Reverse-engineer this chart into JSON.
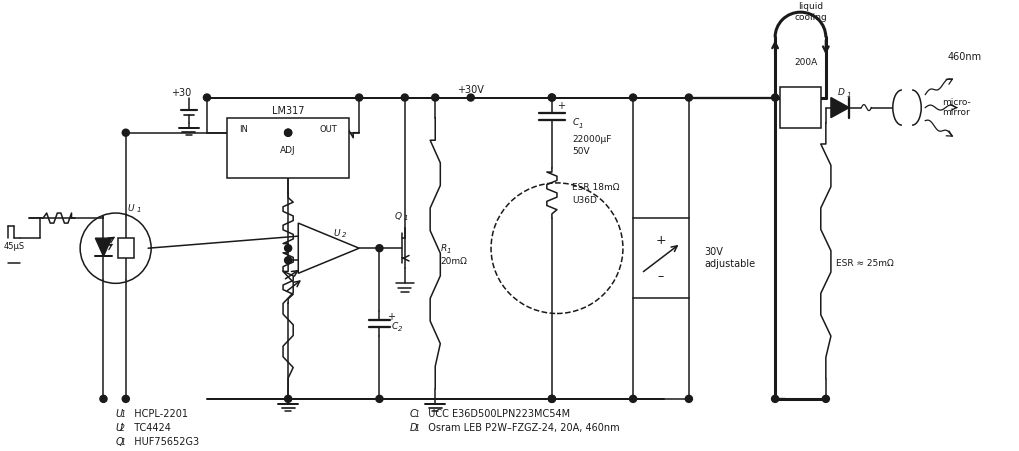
{
  "bg_color": "#ffffff",
  "line_color": "#1a1a1a",
  "fig_width": 10.2,
  "fig_height": 4.51,
  "labels": {
    "lm317": "LM317",
    "adj": "ADJ",
    "in": "IN",
    "out": "OUT",
    "plus30": "+30",
    "plus30v": "+30V",
    "u1": "U",
    "u1sub": "1",
    "u2": "U",
    "u2sub": "2",
    "q1": "Q",
    "q1sub": "1",
    "c1": "C",
    "c1sub": "1",
    "c2": "C",
    "c2sub": "2",
    "r1": "R",
    "r1sub": "1",
    "d1": "D",
    "d1sub": "1",
    "45us": "45μS",
    "liquid_cooling": "liquid\ncooling",
    "200A": "200A",
    "460nm": "460nm",
    "micromirror": "micro-\nmirror",
    "esr25": "ESR ≈ 25mΩ",
    "c1_val": "22000μF\n50V",
    "esr18": "ESR 18mΩ\nU36D",
    "r1_val": "20mΩ",
    "30v_adj": "30V\nadjustable",
    "u1_name": "HCPL-2201",
    "u2_name": "TC4424",
    "q1_name": "HUF75652G3",
    "c1_name": "UCC E36D500LPN223MC54M",
    "d1_name": "Osram LEB P2W–FZGZ-24, 20A, 460nm"
  }
}
